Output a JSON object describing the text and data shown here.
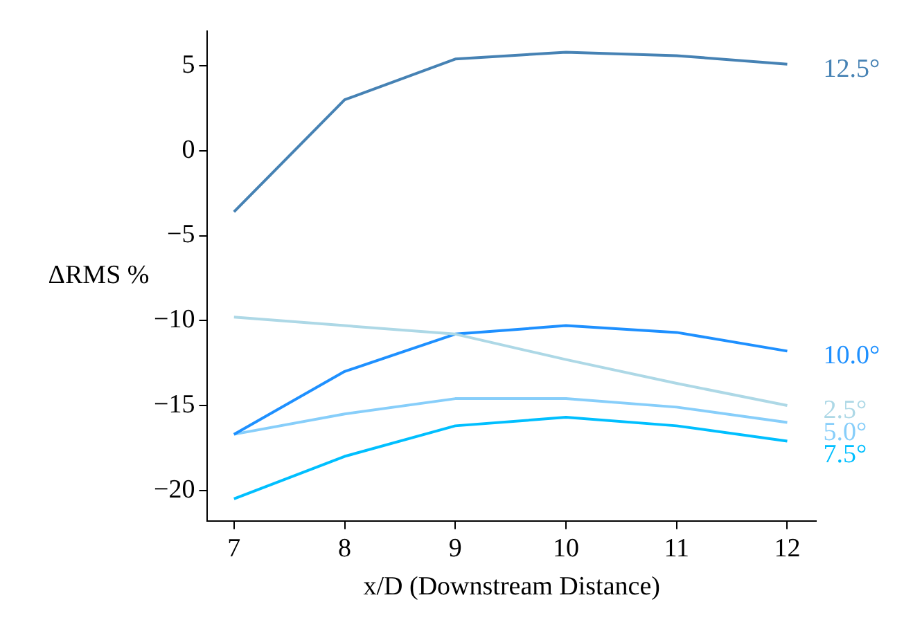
{
  "chart_data": {
    "type": "line",
    "xlabel": "x/D (Downstream Distance)",
    "ylabel": "ΔRMS %",
    "x": [
      7,
      8,
      9,
      10,
      11,
      12
    ],
    "series": [
      {
        "name": "12.5°",
        "color": "#4682b4",
        "values": [
          -3.6,
          3.0,
          5.4,
          5.8,
          5.6,
          5.1
        ]
      },
      {
        "name": "2.5°",
        "color": "#add8e6",
        "values": [
          -9.8,
          -10.3,
          -10.8,
          -12.3,
          -13.7,
          -15.0
        ]
      },
      {
        "name": "10.0°",
        "color": "#1e90ff",
        "values": [
          -16.7,
          -13.0,
          -10.8,
          -10.3,
          -10.7,
          -11.8
        ]
      },
      {
        "name": "5.0°",
        "color": "#87cefa",
        "values": [
          -16.7,
          -15.5,
          -14.6,
          -14.6,
          -15.1,
          -16.0
        ]
      },
      {
        "name": "7.5°",
        "color": "#00bfff",
        "values": [
          -20.5,
          -18.0,
          -16.2,
          -15.7,
          -16.2,
          -17.1
        ]
      }
    ],
    "xlim": [
      6.76,
      12.26
    ],
    "xticks": [
      7,
      8,
      9,
      10,
      11,
      12
    ],
    "ylim": [
      -21.8,
      7.05
    ],
    "yticks": [
      -20,
      -15,
      -10,
      -5,
      0,
      5
    ],
    "grid": false,
    "legend": false,
    "marker": "none",
    "line_style": "solid"
  }
}
